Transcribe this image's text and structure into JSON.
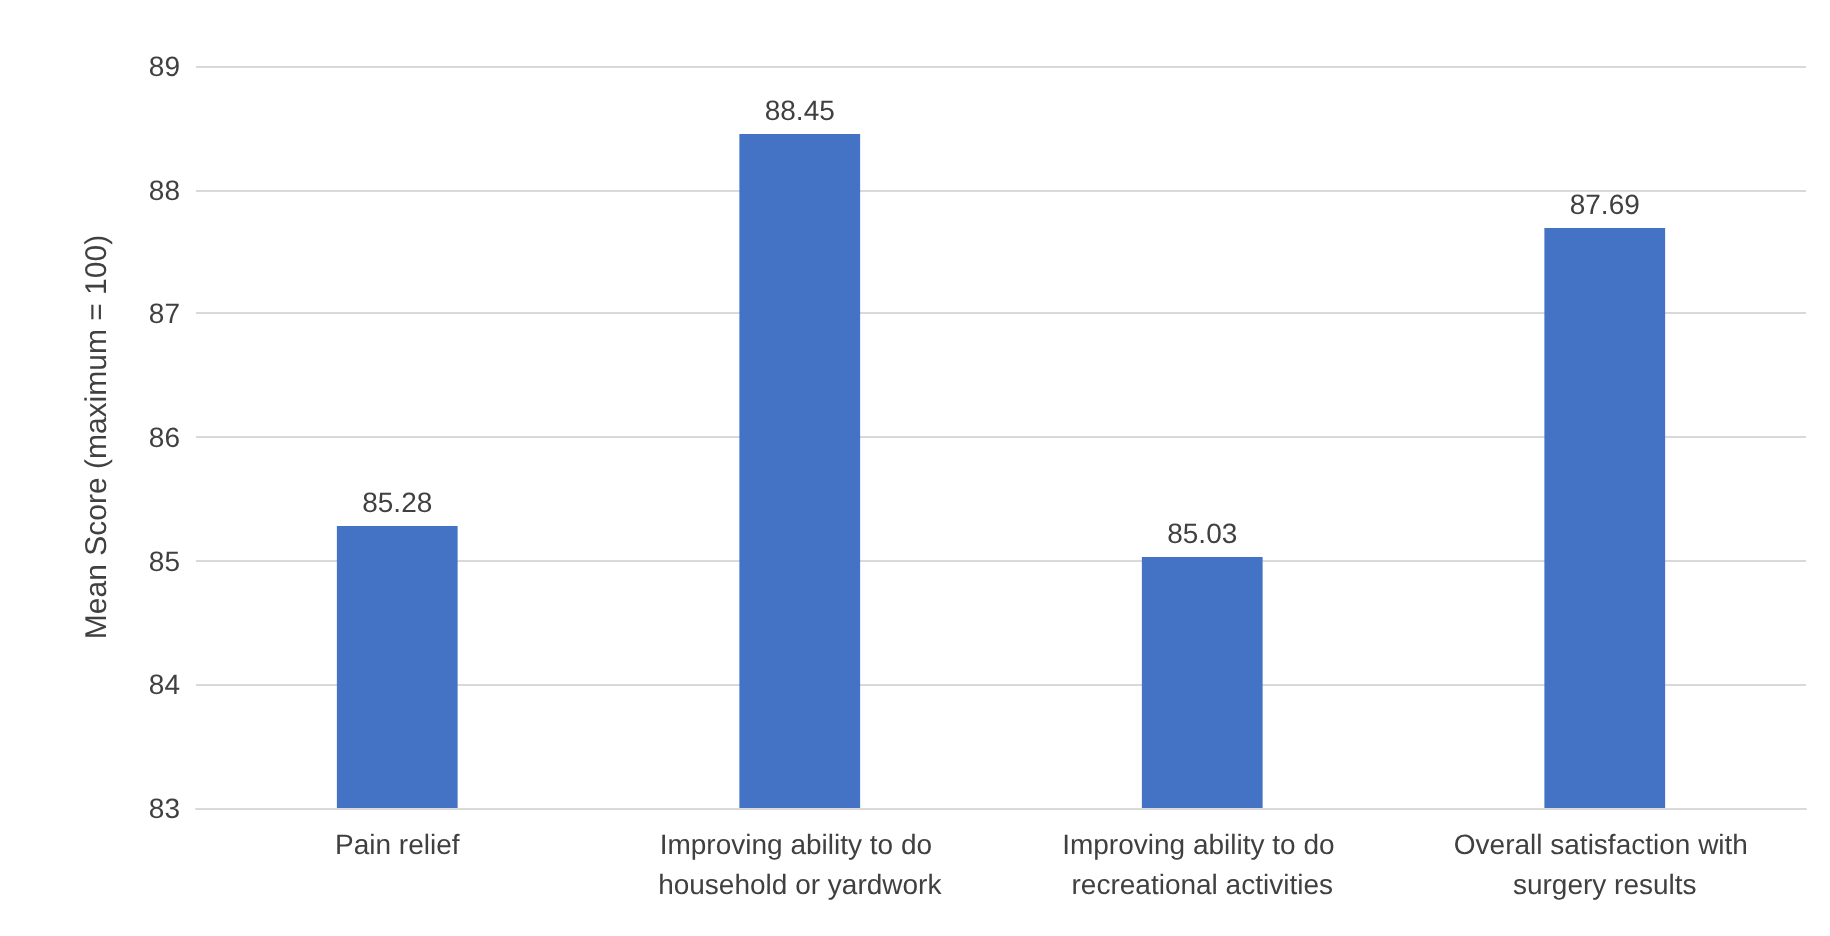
{
  "chart_data": {
    "type": "bar",
    "ylabel": "Mean Score (maximum = 100)",
    "categories": [
      "Pain relief",
      "Improving ability to do household or yardwork",
      "Improving ability to do recreational activities",
      "Overall satisfaction with surgery results"
    ],
    "values": [
      85.28,
      88.45,
      85.03,
      87.69
    ],
    "color": "#4472c4",
    "data_labels": true,
    "ylim": [
      83,
      89
    ],
    "yticks": [
      83,
      84,
      85,
      86,
      87,
      88,
      89
    ],
    "grid": "y"
  }
}
